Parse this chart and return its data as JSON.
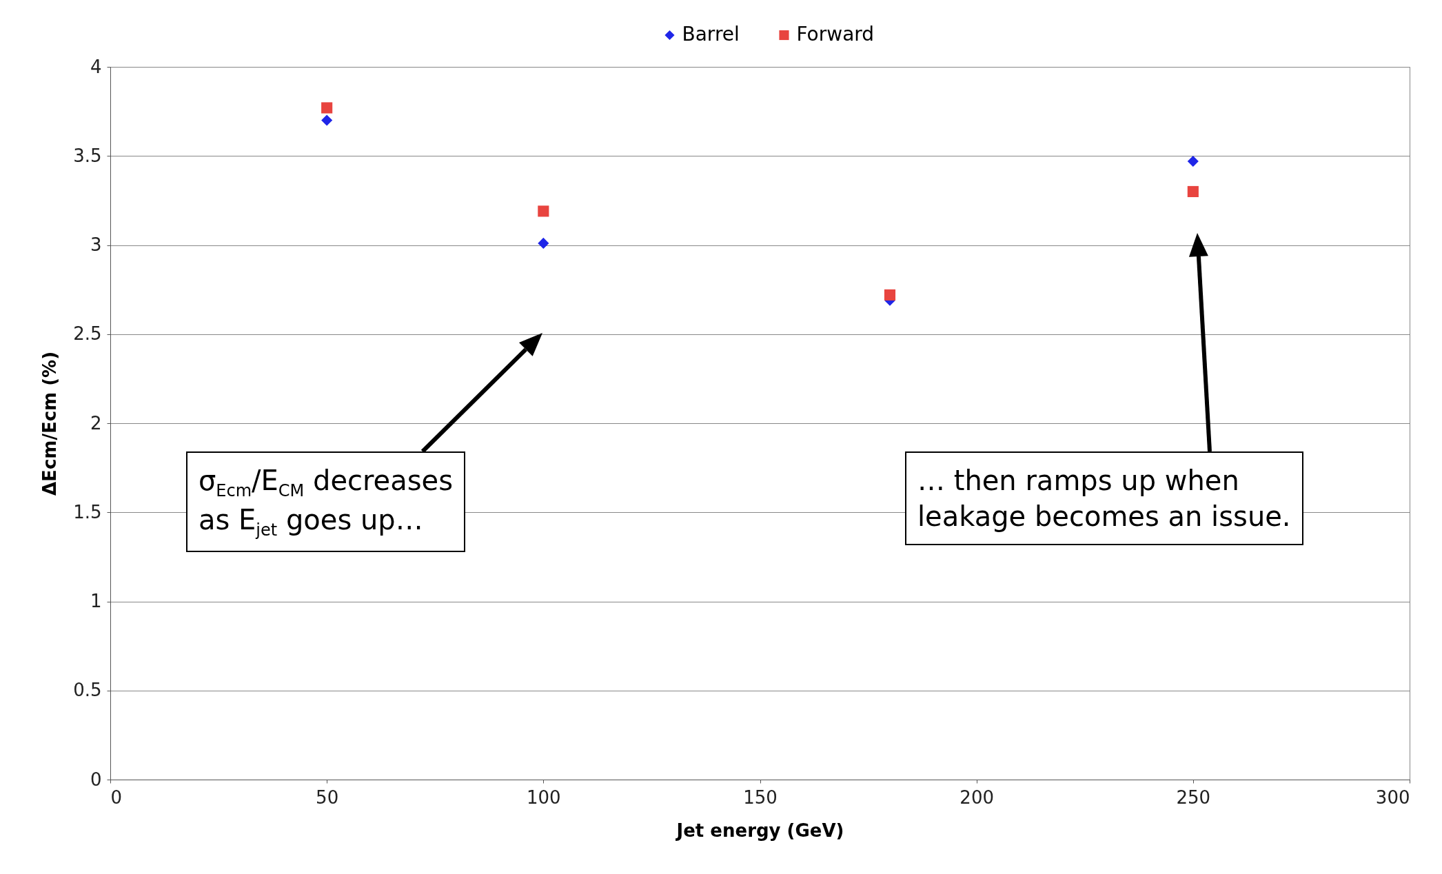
{
  "chart_data": {
    "type": "scatter",
    "xlabel": "Jet energy (GeV)",
    "ylabel": "ΔEcm/Ecm (%)",
    "x": [
      50,
      100,
      180,
      250
    ],
    "series": [
      {
        "name": "Barrel",
        "color": "#1f26e8",
        "marker": "diamond",
        "values": [
          3.7,
          3.01,
          2.69,
          3.47
        ]
      },
      {
        "name": "Forward",
        "color": "#e8443f",
        "marker": "square",
        "values": [
          3.77,
          3.19,
          2.72,
          3.3
        ]
      }
    ],
    "xlim": [
      0,
      300
    ],
    "xticks": [
      0,
      50,
      100,
      150,
      200,
      250,
      300
    ],
    "ylim": [
      0,
      4
    ],
    "yticks": [
      0,
      0.5,
      1,
      1.5,
      2,
      2.5,
      3,
      3.5,
      4
    ],
    "grid": "y",
    "legend": "top",
    "annotations": [
      "σ$_{Ecm}$/E$_{CM}$ decreases\nas E$_{jet}$ goes up…",
      "… then ramps up when\nleakage becomes an issue."
    ]
  }
}
